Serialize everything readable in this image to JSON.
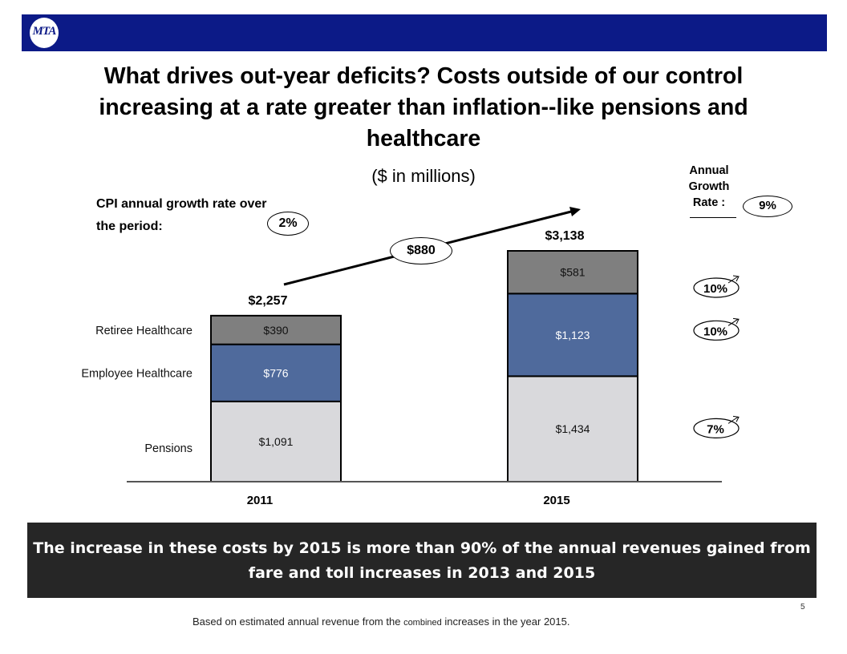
{
  "header": {
    "logo_text": "MTA",
    "bar_color": "#0c1a87"
  },
  "title": "What drives out-year deficits? Costs outside of our control increasing at a rate greater than inflation--like pensions and healthcare",
  "subtitle": "($ in millions)",
  "cpi": {
    "label": "CPI  annual growth rate over the period:",
    "value": "2%"
  },
  "growth_header": {
    "label": "Annual Growth Rate :",
    "value": "9%"
  },
  "increase_label": "$880",
  "chart_data": {
    "type": "bar",
    "stacked": true,
    "categories": [
      "2011",
      "2015"
    ],
    "series": [
      {
        "name": "Pensions",
        "values": [
          1091,
          1434
        ],
        "labels": [
          "$1,091",
          "$1,434"
        ],
        "color": "#d9d9dc",
        "growth": "7%"
      },
      {
        "name": "Employee Healthcare",
        "values": [
          776,
          1123
        ],
        "labels": [
          "$776",
          "$1,123"
        ],
        "color": "#4f6a9c",
        "growth": "10%"
      },
      {
        "name": "Retiree Healthcare",
        "values": [
          390,
          581
        ],
        "labels": [
          "$390",
          "$581"
        ],
        "color": "#7f7f7f",
        "growth": "10%"
      }
    ],
    "totals": [
      "$2,257",
      "$3,138"
    ],
    "ylim": [
      0,
      3138
    ],
    "title": "",
    "xlabel": "",
    "ylabel": "",
    "grid": false
  },
  "callout": "The increase in these costs by 2015 is more than 90% of the annual revenues gained from fare and toll increases in 2013 and 2015",
  "footnote": {
    "part1": "Based on estimated annual revenue from the ",
    "small": "combined",
    "part2": " increases in the year 2015."
  },
  "page_number": "5"
}
